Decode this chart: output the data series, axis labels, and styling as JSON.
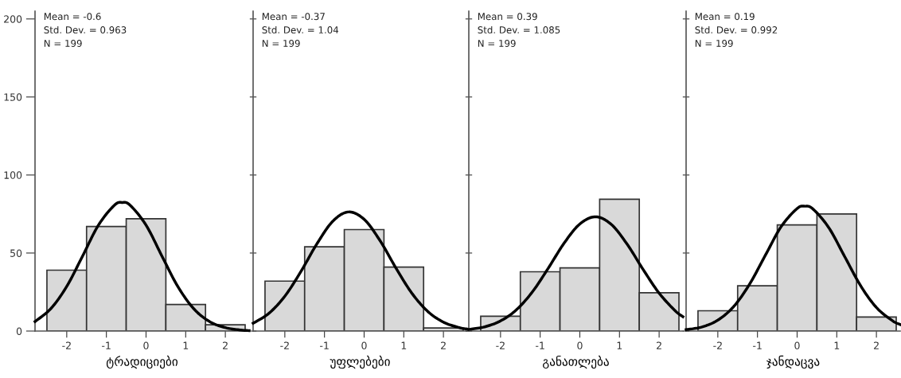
{
  "chart_data": [
    {
      "type": "histogram",
      "xlabel": "ტრადიციები",
      "bins": [
        -2.5,
        -1.5,
        -0.5,
        0.5,
        1.5,
        2.5
      ],
      "values": [
        39,
        67,
        72,
        17,
        4
      ],
      "color": "#d9d9d9",
      "xlim": [
        -2.8,
        2.6
      ],
      "xticks": [
        -2,
        -1,
        0,
        1,
        2
      ],
      "ylim": [
        0,
        205
      ],
      "yticks": [
        0,
        50,
        100,
        150,
        200
      ],
      "annotations": [
        "Mean = -0.6",
        "Std. Dev. = 0.963",
        "N = 199"
      ],
      "series": [
        {
          "type": "line",
          "color": "#000000",
          "x": [
            -2.8,
            -2.4,
            -2.0,
            -1.6,
            -1.2,
            -0.8,
            -0.6,
            -0.4,
            0,
            0.4,
            0.8,
            1.2,
            1.6,
            2.0,
            2.4,
            2.6
          ],
          "values": [
            6.1,
            14.4,
            28.6,
            48.1,
            67.9,
            80.6,
            82.4,
            80.6,
            67.9,
            48.1,
            28.6,
            14.4,
            6.1,
            2.2,
            0.6,
            0.3
          ]
        }
      ]
    },
    {
      "type": "histogram",
      "xlabel": "უფლებები",
      "bins": [
        -2.5,
        -1.5,
        -0.5,
        0.5,
        1.5,
        2.5
      ],
      "values": [
        32,
        54,
        65,
        41,
        2
      ],
      "color": "#d9d9d9",
      "xlim": [
        -2.8,
        2.6
      ],
      "xticks": [
        -2,
        -1,
        0,
        1,
        2
      ],
      "ylim": [
        0,
        205
      ],
      "yticks": [
        0,
        50,
        100,
        150,
        200
      ],
      "tick_labels": "x",
      "annotations": [
        "Mean = -0.37",
        "Std. Dev. = 1.04",
        "N = 199"
      ],
      "series": [
        {
          "type": "line",
          "color": "#000000",
          "x": [
            -2.8,
            -2.4,
            -2.0,
            -1.6,
            -1.2,
            -0.8,
            -0.4,
            0,
            0.4,
            0.8,
            1.2,
            1.6,
            2.0,
            2.4,
            2.6
          ],
          "values": [
            5.0,
            11.4,
            22.3,
            37.9,
            55.5,
            70.1,
            76.3,
            71.6,
            58.0,
            40.5,
            24.4,
            12.7,
            5.7,
            2.2,
            1.3
          ]
        }
      ]
    },
    {
      "type": "histogram",
      "xlabel": "განათლება",
      "bins": [
        -2.5,
        -1.5,
        -0.5,
        0.5,
        1.5,
        2.5
      ],
      "values": [
        9.5,
        38,
        40.5,
        84.5,
        24.5
      ],
      "color": "#d9d9d9",
      "xlim": [
        -2.8,
        2.6
      ],
      "xticks": [
        -2,
        -1,
        0,
        1,
        2
      ],
      "ylim": [
        0,
        205
      ],
      "yticks": [
        0,
        50,
        100,
        150,
        200
      ],
      "tick_labels": "x",
      "annotations": [
        "Mean = 0.39",
        "Std. Dev. = 1.085",
        "N = 199"
      ],
      "series": [
        {
          "type": "line",
          "color": "#000000",
          "x": [
            -2.8,
            -2.4,
            -2.0,
            -1.6,
            -1.2,
            -0.8,
            -0.4,
            0,
            0.4,
            0.8,
            1.2,
            1.6,
            2.0,
            2.4,
            2.6
          ],
          "values": [
            1.0,
            2.7,
            6.5,
            13.6,
            25.0,
            40.1,
            56.2,
            68.6,
            73.2,
            68.2,
            55.4,
            39.3,
            24.3,
            13.1,
            9.2
          ]
        }
      ]
    },
    {
      "type": "histogram",
      "xlabel": "ჯანდაცვა",
      "bins": [
        -2.5,
        -1.5,
        -0.5,
        0.5,
        1.5,
        2.5
      ],
      "values": [
        13,
        29,
        68,
        75,
        9
      ],
      "color": "#d9d9d9",
      "xlim": [
        -2.8,
        2.6
      ],
      "xticks": [
        -2,
        -1,
        0,
        1,
        2
      ],
      "ylim": [
        0,
        205
      ],
      "yticks": [
        0,
        50,
        100,
        150,
        200
      ],
      "tick_labels": "x",
      "annotations": [
        "Mean = 0.19",
        "Std. Dev. = 0.992",
        "N = 199"
      ],
      "series": [
        {
          "type": "line",
          "color": "#000000",
          "x": [
            -2.8,
            -2.4,
            -2.0,
            -1.6,
            -1.2,
            -0.8,
            -0.4,
            0,
            0.2,
            0.4,
            0.8,
            1.2,
            1.6,
            2.0,
            2.4,
            2.6
          ],
          "values": [
            0.9,
            2.6,
            7.0,
            15.7,
            30.0,
            48.6,
            67.0,
            78.5,
            80.0,
            78.2,
            66.2,
            47.7,
            29.1,
            15.1,
            6.7,
            4.2
          ]
        }
      ]
    }
  ]
}
